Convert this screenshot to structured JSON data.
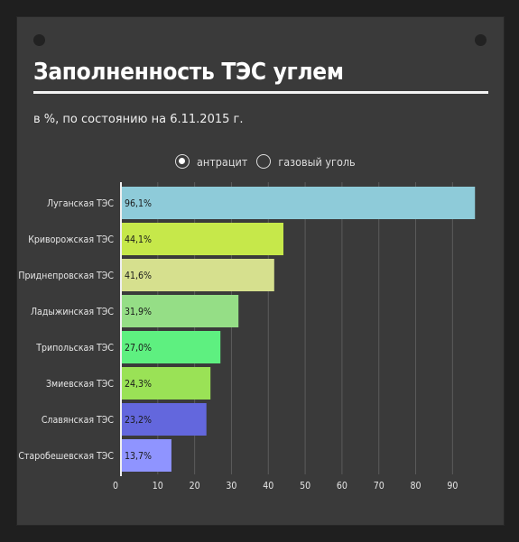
{
  "title": "Заполненность ТЭС углем",
  "subtitle": "в %, по состоянию на 6.11.2015 г.",
  "legend": {
    "options": [
      {
        "label": "антрацит",
        "selected": true
      },
      {
        "label": "газовый уголь",
        "selected": false
      }
    ]
  },
  "chart_data": {
    "type": "bar",
    "orientation": "horizontal",
    "categories": [
      "Луганская ТЭС",
      "Криворожская ТЭС",
      "Приднепровская ТЭС",
      "Ладыжинская ТЭС",
      "Трипольская ТЭС",
      "Змиевская ТЭС",
      "Славянская ТЭС",
      "Старобешевская ТЭС"
    ],
    "values": [
      96.1,
      44.1,
      41.6,
      31.9,
      27.0,
      24.3,
      23.2,
      13.7
    ],
    "value_labels": [
      "96,1%",
      "44,1%",
      "41,6%",
      "31,9%",
      "27,0%",
      "24,3%",
      "23,2%",
      "13,7%"
    ],
    "colors": [
      "#8ecbd9",
      "#c6e84a",
      "#d6e08e",
      "#95de86",
      "#5ef080",
      "#9ae256",
      "#6367dd",
      "#8f94ff"
    ],
    "xlim": [
      0,
      98
    ],
    "xticks": [
      0,
      10,
      20,
      30,
      40,
      50,
      60,
      70,
      80,
      90
    ],
    "grid": true
  }
}
